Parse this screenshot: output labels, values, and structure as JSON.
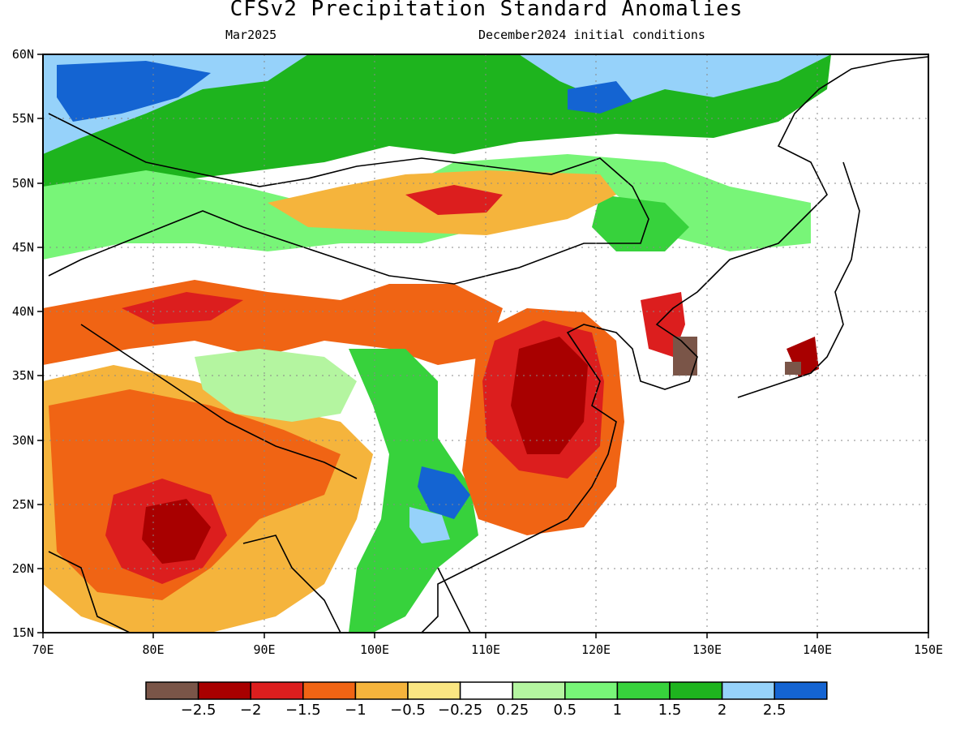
{
  "title": "CFSv2 Precipitation Standard Anomalies",
  "subtitle_left": "Mar2025",
  "subtitle_right": "December2024 initial conditions",
  "map": {
    "lon_range": [
      70,
      150
    ],
    "lat_range": [
      15,
      60
    ],
    "lat_ticks": [
      "60N",
      "55N",
      "50N",
      "45N",
      "40N",
      "35N",
      "30N",
      "25N",
      "20N",
      "15N"
    ],
    "lon_ticks": [
      "70E",
      "80E",
      "90E",
      "100E",
      "110E",
      "120E",
      "130E",
      "140E",
      "150E"
    ]
  },
  "colorbar": {
    "colors": [
      "#7a5548",
      "#a80000",
      "#dc1e1e",
      "#f06414",
      "#f5b43c",
      "#fae682",
      "#ffffff",
      "#b4f5a0",
      "#78f578",
      "#37d23c",
      "#1eb41e",
      "#96d2fa",
      "#1464d2"
    ],
    "labels": [
      "−2.5",
      "−2",
      "−1.5",
      "−1",
      "−0.5",
      "−0.25",
      "0.25",
      "0.5",
      "1",
      "1.5",
      "2",
      "2.5"
    ]
  }
}
